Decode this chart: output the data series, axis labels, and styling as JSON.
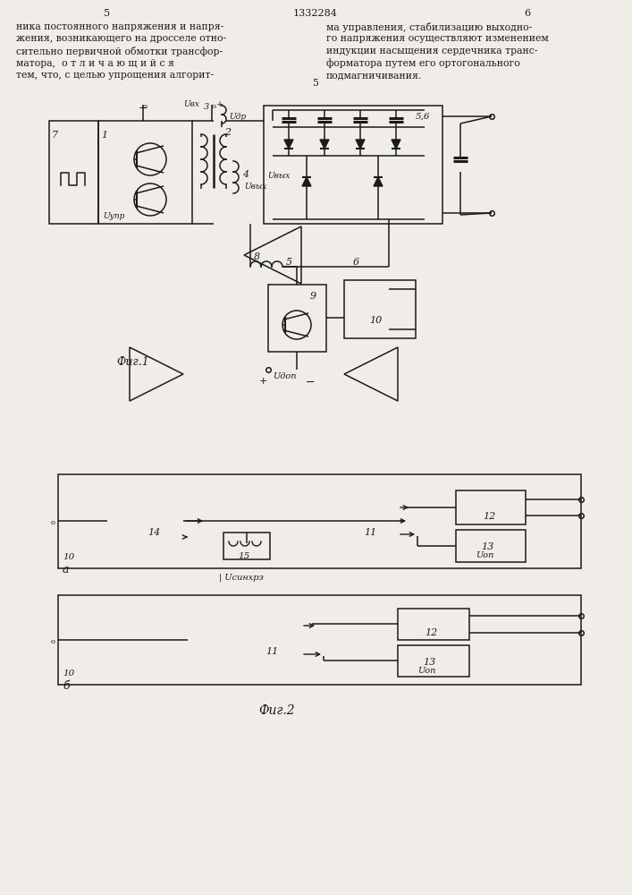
{
  "bg_color": "#f0ede8",
  "line_color": "#1a1a1a",
  "text_color": "#1a1a1a",
  "page_header_num": "1332284",
  "page_num_left": "5",
  "page_num_right": "6",
  "text_left_lines": [
    "ника постоянного напряжения и напря-",
    "жения, возникающего на дросселе отно-",
    "сительно первичной обмотки трансфор-",
    "матора,  о т л и ч а ю щ и й с я",
    "тем, что, с целью упрощения алгорит-"
  ],
  "text_right_lines": [
    "ма управления, стабилизацию выходно-",
    "го напряжения осуществляют изменением",
    "индукции насыщения сердечника транс-",
    "форматора путем его ортогонального",
    "подмагничивания."
  ],
  "fig1_label": "Фиг.1",
  "fig2_label": "Фиг.2"
}
